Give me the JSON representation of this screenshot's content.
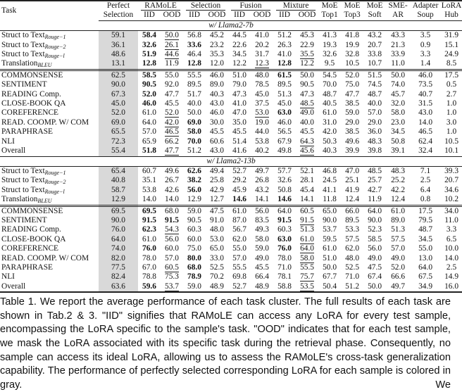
{
  "header": {
    "task": "Task",
    "perfect": [
      "Perfect",
      "Selection"
    ],
    "groups": [
      "RAMoLE",
      "Selection",
      "Fusion",
      "Mixture"
    ],
    "sub": [
      "IID",
      "OOD"
    ],
    "single": [
      [
        "MoE",
        "Top1"
      ],
      [
        "MoE",
        "Top3"
      ],
      [
        "MoE",
        "Soft"
      ],
      [
        "SME-",
        "AR"
      ],
      [
        "Adapter",
        "Soup"
      ],
      [
        "LoRA",
        "Hub"
      ]
    ]
  },
  "sections": [
    {
      "label": "w/ Llama2-7b",
      "rows": [
        {
          "task": "Struct to Text",
          "sub": "Rouge−1",
          "values": [
            "59.1",
            "58.4",
            "50.0",
            "56.8",
            "45.2",
            "44.5",
            "41.0",
            "51.2",
            "45.3",
            "41.3",
            "41.8",
            "43.2",
            "43.3",
            "3.5",
            "31.9"
          ],
          "bold": [
            1
          ],
          "underline": [
            2
          ]
        },
        {
          "task": "Struct to Text",
          "sub": "Rouge−2",
          "values": [
            "36.1",
            "32.6",
            "26.1",
            "33.6",
            "23.2",
            "22.6",
            "20.2",
            "26.3",
            "22.9",
            "19.3",
            "19.9",
            "20.7",
            "21.3",
            "0.9",
            "15.1"
          ],
          "bold": [
            1,
            3
          ],
          "underline": [
            2
          ]
        },
        {
          "task": "Struct to Text",
          "sub": "Rouge−l",
          "values": [
            "48.6",
            "51.9",
            "44.6",
            "46.4",
            "35.3",
            "34.5",
            "31.7",
            "41.0",
            "35.5",
            "32.6",
            "32.8",
            "33.8",
            "33.9",
            "3.3",
            "24.9"
          ],
          "bold": [
            1
          ],
          "underline": [
            2,
            8
          ]
        },
        {
          "task": "Translation",
          "sub": "BLEU",
          "values": [
            "13.1",
            "12.8",
            "11.9",
            "12.8",
            "12.0",
            "12.2",
            "12.3",
            "12.8",
            "12.2",
            "9.5",
            "10.5",
            "10.7",
            "11.0",
            "1.4",
            "8.5"
          ],
          "bold": [
            1,
            3,
            7
          ],
          "underline": [
            6
          ]
        },
        {
          "task": "COMMONSENSE",
          "values": [
            "62.5",
            "58.5",
            "55.0",
            "55.5",
            "46.0",
            "51.0",
            "48.0",
            "61.5",
            "50.0",
            "54.5",
            "52.0",
            "51.5",
            "50.0",
            "46.0",
            "17.5"
          ],
          "bold": [
            1,
            7
          ],
          "underline": []
        },
        {
          "task": "SENTIMENT",
          "values": [
            "90.0",
            "90.5",
            "92.0",
            "89.5",
            "89.0",
            "79.0",
            "78.5",
            "89.5",
            "90.5",
            "70.0",
            "75.0",
            "74.5",
            "74.0",
            "73.5",
            "0.5"
          ],
          "bold": [
            1
          ],
          "underline": []
        },
        {
          "task": "READING Comp.",
          "values": [
            "67.3",
            "52.0",
            "47.7",
            "51.7",
            "40.3",
            "47.3",
            "45.0",
            "51.3",
            "47.3",
            "48.7",
            "47.7",
            "48.7",
            "45.7",
            "40.7",
            "2.7"
          ],
          "bold": [
            1
          ],
          "underline": []
        },
        {
          "task": "CLOSE-BOOK QA",
          "values": [
            "45.0",
            "46.0",
            "45.5",
            "40.0",
            "43.0",
            "41.0",
            "37.5",
            "45.0",
            "48.5",
            "40.5",
            "38.5",
            "40.0",
            "32.0",
            "31.5",
            "1.0"
          ],
          "bold": [
            1
          ],
          "underline": [
            8
          ]
        },
        {
          "task": "COREFERENCE",
          "values": [
            "52.0",
            "61.0",
            "52.0",
            "50.0",
            "46.0",
            "47.0",
            "53.0",
            "63.0",
            "49.0",
            "61.0",
            "59.0",
            "57.0",
            "58.0",
            "43.0",
            "1.0"
          ],
          "bold": [
            7
          ],
          "underline": [
            2,
            6
          ]
        },
        {
          "task": "READ. COOMP. W/ COM",
          "values": [
            "69.0",
            "64.0",
            "42.0",
            "69.0",
            "30.0",
            "35.0",
            "19.0",
            "46.0",
            "40.0",
            "31.0",
            "29.0",
            "29.0",
            "23.0",
            "14.0",
            "3.0"
          ],
          "bold": [
            3
          ],
          "underline": [
            2
          ]
        },
        {
          "task": "PARAPHRASE",
          "values": [
            "65.5",
            "57.0",
            "46.5",
            "58.0",
            "45.5",
            "45.5",
            "44.0",
            "56.5",
            "45.5",
            "42.0",
            "38.5",
            "36.0",
            "34.5",
            "46.5",
            "1.0"
          ],
          "bold": [
            3
          ],
          "underline": [
            2
          ]
        },
        {
          "task": "NLI",
          "values": [
            "72.3",
            "65.9",
            "66.2",
            "70.0",
            "60.6",
            "51.4",
            "53.8",
            "67.9",
            "64.3",
            "50.3",
            "49.6",
            "48.3",
            "50.8",
            "62.4",
            "10.5"
          ],
          "bold": [
            3
          ],
          "underline": [
            8
          ]
        },
        {
          "task": "Overall",
          "values": [
            "55.4",
            "51.8",
            "47.7",
            "51.2",
            "43.0",
            "41.6",
            "40.2",
            "49.8",
            "45.6",
            "40.3",
            "39.9",
            "39.8",
            "39.1",
            "32.4",
            "10.1"
          ],
          "bold": [
            1
          ],
          "underline": [
            2,
            8
          ]
        }
      ]
    },
    {
      "label": "w/ Llama2-13b",
      "rows": [
        {
          "task": "Struct to Text",
          "sub": "Rouge−1",
          "values": [
            "65.4",
            "60.7",
            "49.6",
            "62.6",
            "49.4",
            "52.7",
            "49.7",
            "57.7",
            "52.1",
            "46.8",
            "47.0",
            "48.5",
            "48.3",
            "7.1",
            "39.3"
          ],
          "bold": [
            3
          ],
          "underline": []
        },
        {
          "task": "Struct to Text",
          "sub": "Rouge−2",
          "values": [
            "40.8",
            "35.1",
            "26.7",
            "38.2",
            "25.8",
            "29.2",
            "26.8",
            "32.6",
            "28.1",
            "24.5",
            "25.1",
            "25.7",
            "25.2",
            "2.5",
            "20.7"
          ],
          "bold": [
            3
          ],
          "underline": []
        },
        {
          "task": "Struct to Text",
          "sub": "Rouge−l",
          "values": [
            "58.7",
            "53.8",
            "42.6",
            "56.0",
            "42.9",
            "45.9",
            "43.2",
            "50.8",
            "45.4",
            "41.1",
            "41.9",
            "42.7",
            "42.2",
            "6.4",
            "34.6"
          ],
          "bold": [
            3
          ],
          "underline": []
        },
        {
          "task": "Translation",
          "sub": "BLEU",
          "values": [
            "12.9",
            "14.0",
            "14.0",
            "12.9",
            "12.7",
            "14.6",
            "14.1",
            "14.6",
            "14.1",
            "11.8",
            "12.4",
            "11.9",
            "12.4",
            "0.8",
            "10.2"
          ],
          "bold": [
            5,
            7
          ],
          "underline": []
        },
        {
          "task": "COMMONSENSE",
          "values": [
            "69.5",
            "69.5",
            "68.0",
            "59.0",
            "47.5",
            "61.0",
            "56.0",
            "64.0",
            "60.5",
            "65.0",
            "66.0",
            "64.0",
            "61.0",
            "17.5",
            "34.0"
          ],
          "bold": [
            1
          ],
          "underline": []
        },
        {
          "task": "SENTIMENT",
          "values": [
            "90.0",
            "91.5",
            "91.5",
            "90.5",
            "91.0",
            "87.0",
            "83.5",
            "91.5",
            "91.5",
            "90.0",
            "89.5",
            "90.0",
            "89.0",
            "79.5",
            "11.0"
          ],
          "bold": [
            1,
            2,
            7
          ],
          "underline": [
            8
          ]
        },
        {
          "task": "READING Comp.",
          "values": [
            "76.0",
            "62.3",
            "54.3",
            "60.3",
            "48.0",
            "56.7",
            "49.3",
            "60.3",
            "51.3",
            "53.7",
            "53.3",
            "52.3",
            "51.3",
            "48.7",
            "3.3"
          ],
          "bold": [
            1
          ],
          "underline": [
            2
          ]
        },
        {
          "task": "CLOSE-BOOK QA",
          "values": [
            "64.0",
            "61.0",
            "56.0",
            "60.0",
            "53.0",
            "62.0",
            "58.0",
            "63.0",
            "61.0",
            "59.5",
            "57.5",
            "58.5",
            "57.5",
            "34.5",
            "6.5"
          ],
          "bold": [
            7
          ],
          "underline": [
            8
          ]
        },
        {
          "task": "COREFERENCE",
          "values": [
            "74.0",
            "76.0",
            "60.0",
            "75.0",
            "65.0",
            "55.0",
            "59.0",
            "76.0",
            "64.0",
            "61.0",
            "62.0",
            "56.0",
            "57.0",
            "55.0",
            "10.0"
          ],
          "bold": [
            1,
            7
          ],
          "underline": [
            8
          ]
        },
        {
          "task": "READ. COOMP. W/ COM",
          "values": [
            "82.0",
            "78.0",
            "57.0",
            "80.0",
            "33.0",
            "57.0",
            "49.0",
            "78.0",
            "58.0",
            "51.0",
            "48.0",
            "49.0",
            "49.0",
            "13.0",
            "14.0"
          ],
          "bold": [
            3
          ],
          "underline": [
            8
          ]
        },
        {
          "task": "PARAPHRASE",
          "values": [
            "77.5",
            "67.0",
            "60.5",
            "68.0",
            "52.5",
            "55.5",
            "45.5",
            "71.0",
            "55.5",
            "50.0",
            "52.5",
            "47.5",
            "52.0",
            "64.0",
            "2.5"
          ],
          "bold": [
            3
          ],
          "underline": [
            2
          ]
        },
        {
          "task": "NLI",
          "values": [
            "82.4",
            "78.8",
            "75.3",
            "78.9",
            "70.2",
            "69.8",
            "66.4",
            "78.1",
            "75.7",
            "67.7",
            "71.0",
            "67.4",
            "66.6",
            "67.5",
            "14.9"
          ],
          "bold": [
            3
          ],
          "underline": [
            8
          ]
        },
        {
          "task": "Overall",
          "values": [
            "63.6",
            "59.6",
            "53.7",
            "59.0",
            "48.9",
            "52.7",
            "48.9",
            "58.8",
            "53.5",
            "50.4",
            "51.2",
            "50.0",
            "49.7",
            "34.9",
            "16.0"
          ],
          "bold": [
            1
          ],
          "underline": [
            2,
            8
          ]
        }
      ]
    }
  ],
  "caption": "Table 1. We report the average performance of each task cluster. The full results of each task are shown in Tab.2 & 3. \"IID\" signifies that RAMoLE can access any LoRA for every test sample, encompassing the LoRA specific to the sample's task. \"OOD\" indicates that for each test sample, we mask the LoRA associated with its specific task during the retrieval phase. Consequently, no sample can access its ideal LoRA, allowing us to assess the RAMoLE's cross-task generalization capability. The performance of perfectly selected corresponding LoRA for each sample is colored in gray. We",
  "colors": {
    "gray_column": "#d9d9d9",
    "text": "#111111"
  }
}
